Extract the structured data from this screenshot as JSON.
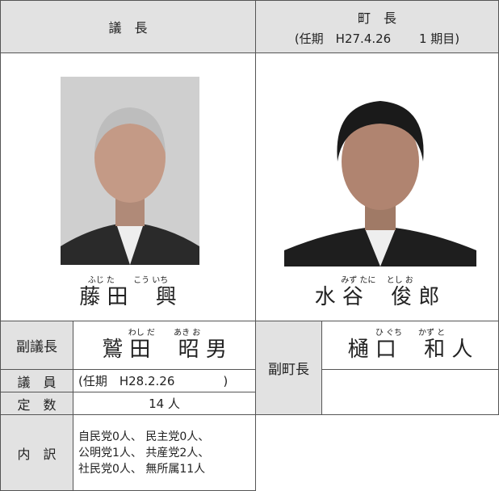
{
  "chairman": {
    "heading": "議　長",
    "reading": "ふじ た　　 こう いち",
    "name": "藤 田　 興"
  },
  "mayor": {
    "heading": "町　長",
    "term": "(任期　H27.4.26　　 1 期目)",
    "reading": "みず たに　 とし お",
    "name": "水 谷　 俊 郎"
  },
  "vice_chairman": {
    "label": "副議長",
    "reading": "わし だ　　 あき お",
    "name": "鷲 田　 昭 男"
  },
  "members": {
    "label": "議　員",
    "term": "(任期　H28.2.26　　　　)"
  },
  "capacity": {
    "label": "定　数",
    "value": "14 人"
  },
  "breakdown": {
    "label": "内　訳",
    "lines": [
      "自民党0人、 民主党0人、",
      "公明党1人、 共産党2人、",
      "社民党0人、 無所属11人"
    ]
  },
  "vice_mayor": {
    "label": "副町長",
    "reading": "ひ ぐち　　かず と",
    "name": "樋 口　 和 人"
  }
}
